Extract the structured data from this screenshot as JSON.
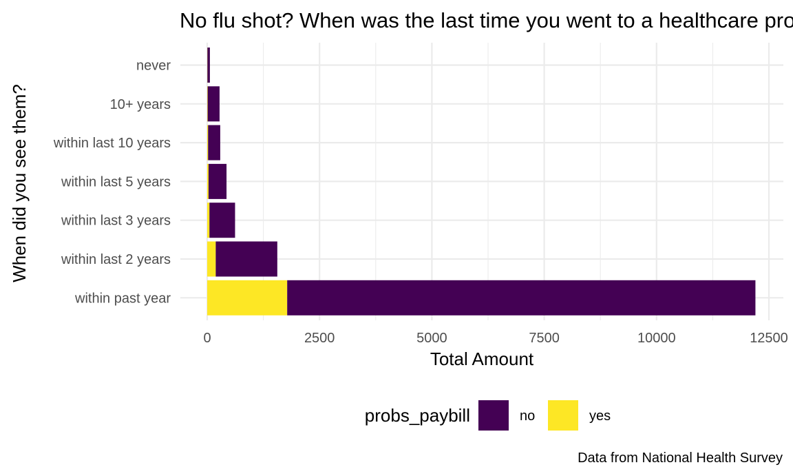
{
  "chart_data": {
    "type": "bar",
    "orientation": "horizontal",
    "stacked": true,
    "title": "No flu shot? When was the last time you went to a healthcare provider?",
    "xlabel": "Total Amount",
    "ylabel": "When did you see them?",
    "caption": "Data from National Health Survey",
    "categories": [
      "never",
      "10+ years",
      "within last 10 years",
      "within last 5 years",
      "within last 3 years",
      "within last 2 years",
      "within past year"
    ],
    "series": [
      {
        "name": "yes",
        "color": "#fde725",
        "values": [
          5,
          10,
          20,
          30,
          50,
          190,
          1780
        ]
      },
      {
        "name": "no",
        "color": "#440154",
        "values": [
          55,
          265,
          270,
          400,
          570,
          1370,
          10420
        ]
      }
    ],
    "xlim": [
      0,
      12500
    ],
    "xticks": [
      "0",
      "2500",
      "5000",
      "7500",
      "10000",
      "12500"
    ],
    "xtick_values": [
      0,
      2500,
      5000,
      7500,
      10000,
      12500
    ],
    "grid": true,
    "legend": {
      "title": "probs_paybill",
      "placement": "bottom",
      "entries": [
        "no",
        "yes"
      ]
    }
  }
}
